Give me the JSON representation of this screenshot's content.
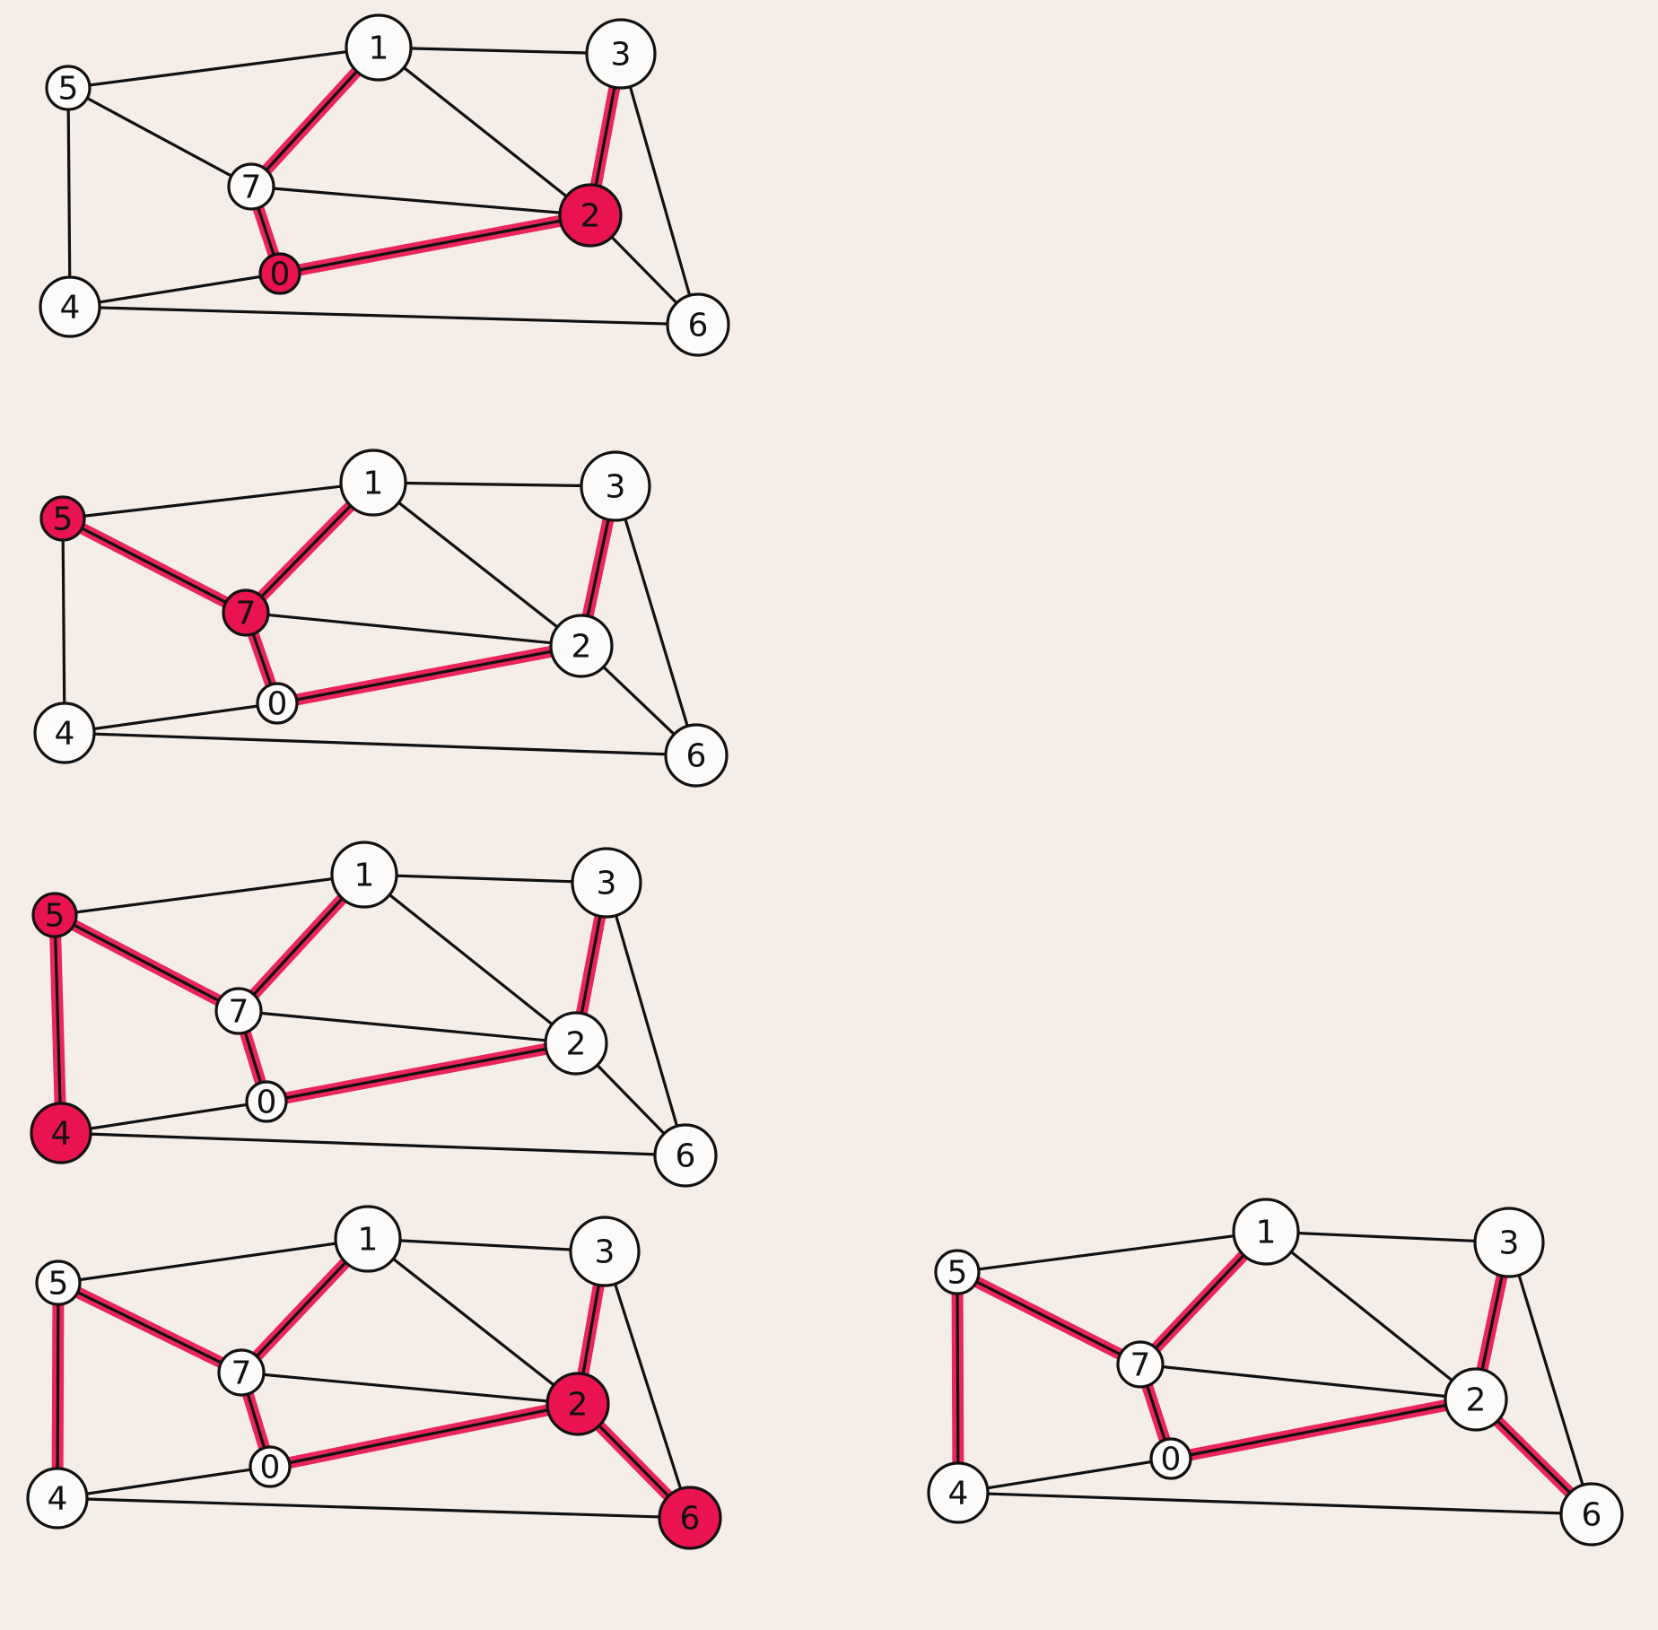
{
  "colors": {
    "background": "#f5ede8",
    "highlight": "#e8134f",
    "ink": "#111111",
    "node_fill": "#fdfbf9"
  },
  "node_labels": [
    "0",
    "1",
    "2",
    "3",
    "4",
    "5",
    "6",
    "7"
  ],
  "edges": [
    [
      5,
      1
    ],
    [
      1,
      3
    ],
    [
      5,
      4
    ],
    [
      5,
      7
    ],
    [
      1,
      7
    ],
    [
      1,
      2
    ],
    [
      3,
      2
    ],
    [
      3,
      6
    ],
    [
      7,
      2
    ],
    [
      7,
      0
    ],
    [
      0,
      2
    ],
    [
      4,
      0
    ],
    [
      4,
      6
    ],
    [
      2,
      6
    ]
  ],
  "panels": [
    {
      "id": "step-1",
      "highlighted_edges": [
        [
          1,
          7
        ],
        [
          7,
          0
        ],
        [
          0,
          2
        ],
        [
          2,
          3
        ]
      ],
      "filled_nodes": [
        0,
        2
      ]
    },
    {
      "id": "step-2",
      "highlighted_edges": [
        [
          1,
          7
        ],
        [
          7,
          0
        ],
        [
          0,
          2
        ],
        [
          2,
          3
        ],
        [
          5,
          7
        ]
      ],
      "filled_nodes": [
        5,
        7
      ]
    },
    {
      "id": "step-3",
      "highlighted_edges": [
        [
          1,
          7
        ],
        [
          7,
          0
        ],
        [
          0,
          2
        ],
        [
          2,
          3
        ],
        [
          5,
          7
        ],
        [
          5,
          4
        ]
      ],
      "filled_nodes": [
        5,
        4
      ]
    },
    {
      "id": "step-4",
      "highlighted_edges": [
        [
          1,
          7
        ],
        [
          7,
          0
        ],
        [
          0,
          2
        ],
        [
          2,
          3
        ],
        [
          5,
          7
        ],
        [
          5,
          4
        ],
        [
          2,
          6
        ]
      ],
      "filled_nodes": [
        2,
        6
      ]
    },
    {
      "id": "final-tree",
      "highlighted_edges": [
        [
          1,
          7
        ],
        [
          7,
          0
        ],
        [
          0,
          2
        ],
        [
          2,
          3
        ],
        [
          5,
          7
        ],
        [
          5,
          4
        ],
        [
          2,
          6
        ]
      ],
      "filled_nodes": []
    }
  ]
}
